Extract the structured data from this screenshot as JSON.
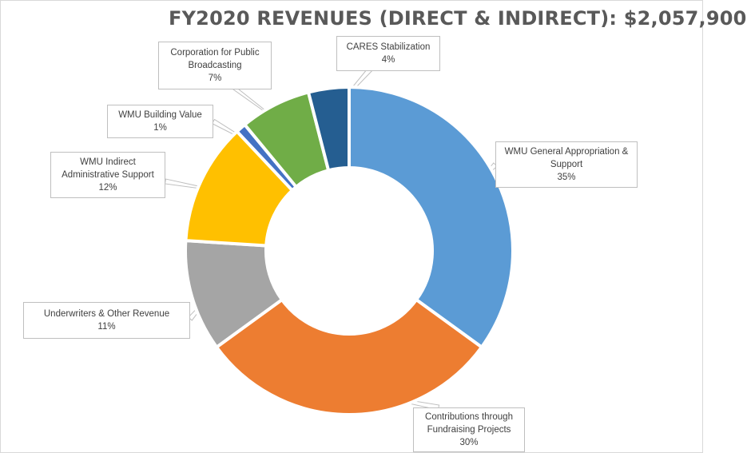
{
  "chart_data": {
    "type": "pie",
    "variant": "doughnut",
    "title": "FY2020 REVENUES (DIRECT & INDIRECT): $2,057,900",
    "slices": [
      {
        "label": "WMU General Appropriation & Support",
        "value": 35,
        "display": "35%",
        "color": "#5b9bd5"
      },
      {
        "label": "Contributions through Fundraising Projects",
        "value": 30,
        "display": "30%",
        "color": "#ed7d31"
      },
      {
        "label": "Underwriters & Other Revenue",
        "value": 11,
        "display": "11%",
        "color": "#a5a5a5"
      },
      {
        "label": "WMU Indirect Administrative Support",
        "value": 12,
        "display": "12%",
        "color": "#ffc000"
      },
      {
        "label": "WMU Building Value",
        "value": 1,
        "display": "1%",
        "color": "#4472c4"
      },
      {
        "label": "Corporation for Public Broadcasting",
        "value": 7,
        "display": "7%",
        "color": "#70ad47"
      },
      {
        "label": "CARES Stabilization",
        "value": 4,
        "display": "4%",
        "color": "#255e91"
      }
    ],
    "legend": "none",
    "data_labels": "callouts"
  }
}
